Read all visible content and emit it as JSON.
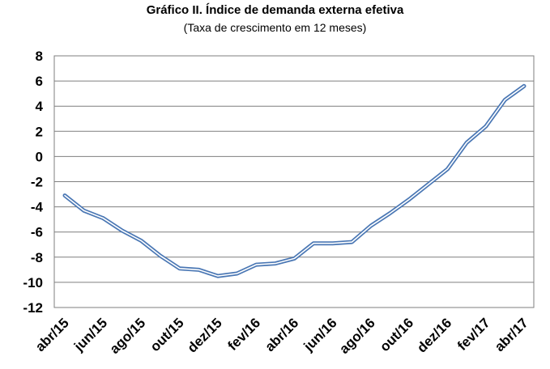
{
  "chart_data": {
    "type": "line",
    "title": "Gráfico II. Índice de demanda externa efetiva",
    "subtitle": "(Taxa de crescimento em 12 meses)",
    "xlabel": "",
    "ylabel": "",
    "ylim": [
      -12,
      8
    ],
    "yticks": [
      "8",
      "6",
      "4",
      "2",
      "0",
      "-2",
      "-4",
      "-6",
      "-8",
      "-10",
      "-12"
    ],
    "grid": true,
    "legend": "none",
    "line_color": "#4a77b4",
    "x": [
      "abr/15",
      "mai/15",
      "jun/15",
      "jul/15",
      "ago/15",
      "set/15",
      "out/15",
      "nov/15",
      "dez/15",
      "jan/16",
      "fev/16",
      "mar/16",
      "abr/16",
      "mai/16",
      "jun/16",
      "jul/16",
      "ago/16",
      "set/16",
      "out/16",
      "nov/16",
      "dez/16",
      "jan/17",
      "fev/17",
      "mar/17",
      "abr/17"
    ],
    "xtick_labels": [
      "abr/15",
      "jun/15",
      "ago/15",
      "out/15",
      "dez/15",
      "fev/16",
      "abr/16",
      "jun/16",
      "ago/16",
      "out/16",
      "dez/16",
      "fev/17",
      "abr/17"
    ],
    "series": [
      {
        "values": [
          -3.1,
          -4.3,
          -4.9,
          -5.9,
          -6.7,
          -7.9,
          -8.9,
          -9.0,
          -9.5,
          -9.3,
          -8.6,
          -8.5,
          -8.1,
          -6.9,
          -6.9,
          -6.8,
          -5.5,
          -4.5,
          -3.4,
          -2.2,
          -1.0,
          1.1,
          2.4,
          4.5,
          5.6
        ]
      }
    ]
  }
}
